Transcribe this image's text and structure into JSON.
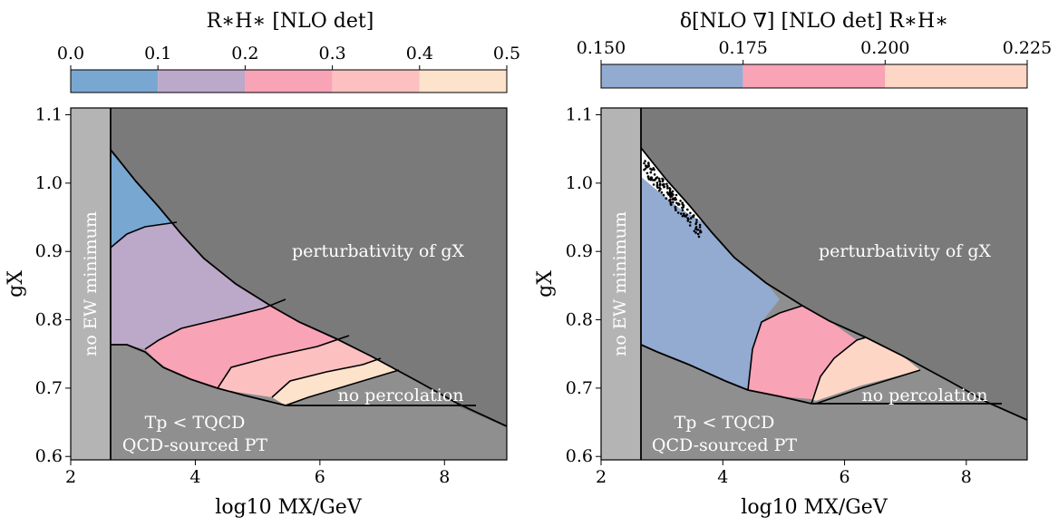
{
  "chart_data": [
    {
      "type": "area",
      "title": "",
      "xlabel": "log10 MX/GeV",
      "ylabel": "gX",
      "xlim": [
        2,
        9
      ],
      "ylim": [
        0.595,
        1.11
      ],
      "xticks": [
        "2",
        "4",
        "6",
        "8"
      ],
      "yticks": [
        "0.6",
        "0.7",
        "0.8",
        "0.9",
        "1.0",
        "1.1"
      ],
      "colorbar": {
        "label": "R∗H∗ [NLO det]",
        "ticks": [
          "0.0",
          "0.1",
          "0.2",
          "0.3",
          "0.4",
          "0.5"
        ],
        "bins": [
          {
            "from": 0.0,
            "to": 0.1,
            "color": "#78a8d2"
          },
          {
            "from": 0.1,
            "to": 0.2,
            "color": "#bca8c8"
          },
          {
            "from": 0.2,
            "to": 0.3,
            "color": "#f9a3b6"
          },
          {
            "from": 0.3,
            "to": 0.4,
            "color": "#fdc0c0"
          },
          {
            "from": 0.4,
            "to": 0.5,
            "color": "#fde2cc"
          }
        ]
      },
      "region_labels": [
        "no EW minimum",
        "perturbativity of gX",
        "no percolation",
        "Tp < TQCD",
        "QCD-sourced PT"
      ]
    },
    {
      "type": "area",
      "title": "",
      "xlabel": "log10 MX/GeV",
      "ylabel": "gX",
      "xlim": [
        2,
        9
      ],
      "ylim": [
        0.595,
        1.11
      ],
      "xticks": [
        "2",
        "4",
        "6",
        "8"
      ],
      "yticks": [
        "0.6",
        "0.7",
        "0.8",
        "0.9",
        "1.0",
        "1.1"
      ],
      "colorbar": {
        "label": "δ[NLO ∇] [NLO det] R∗H∗",
        "ticks": [
          "0.150",
          "0.175",
          "0.200",
          "0.225"
        ],
        "bins": [
          {
            "from": 0.15,
            "to": 0.175,
            "color": "#93aad1"
          },
          {
            "from": 0.175,
            "to": 0.2,
            "color": "#f9a3b6"
          },
          {
            "from": 0.2,
            "to": 0.225,
            "color": "#fdd6c6"
          }
        ]
      },
      "region_labels": [
        "no EW minimum",
        "perturbativity of gX",
        "no percolation",
        "Tp < TQCD",
        "QCD-sourced PT"
      ]
    }
  ],
  "colors": {
    "no_ew_minimum": "#b4b4b4",
    "perturbativity": "#7a7a7a",
    "qcd_sourced": "#8f8f8f",
    "no_percolation": "#8f8f8f"
  }
}
